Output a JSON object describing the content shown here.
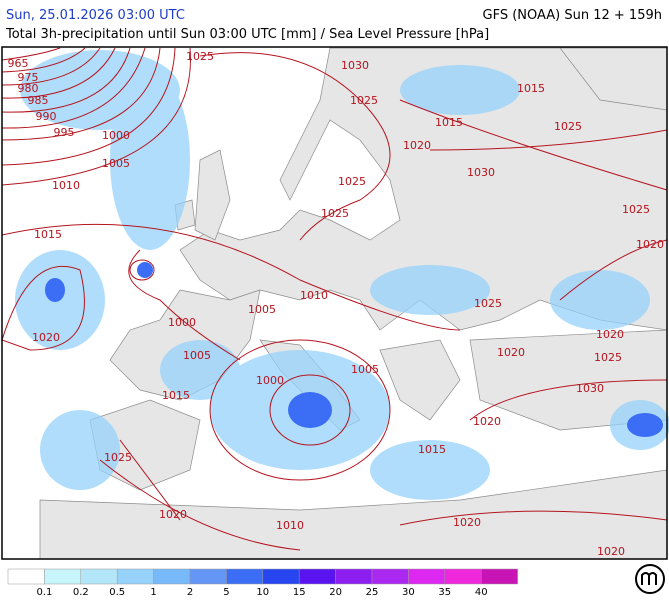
{
  "header": {
    "datetime": "Sun, 25.01.2026 03:00 UTC",
    "model": "GFS (NOAA) Sun 12 + 159h",
    "subtitle": "Total 3h-precipitation until Sun 03:00 UTC [mm] / Sea Level Pressure [hPa]"
  },
  "isobar_labels": [
    "965",
    "975",
    "980",
    "985",
    "990",
    "995",
    "1000",
    "1005",
    "1010",
    "1015",
    "1020",
    "1025",
    "1030",
    "1025",
    "1015",
    "1015",
    "1025",
    "1020",
    "1030",
    "1025",
    "1025",
    "1025",
    "1020",
    "1010",
    "1025",
    "1000",
    "1005",
    "1020",
    "1005",
    "1020",
    "1025",
    "1000",
    "1005",
    "1015",
    "1030",
    "1020",
    "1015",
    "1025",
    "1020",
    "1010",
    "1020",
    "1020"
  ],
  "legend": {
    "colors": [
      "#ffffff",
      "#c8f5fa",
      "#b4e6fa",
      "#96d2fa",
      "#78b9fa",
      "#6496f5",
      "#3c6ef5",
      "#2846f0",
      "#5a14f0",
      "#8c1ef0",
      "#aa28f0",
      "#dc28f0",
      "#f028dc",
      "#c814b4"
    ],
    "labels": [
      "0.1",
      "0.2",
      "0.5",
      "1",
      "2",
      "5",
      "10",
      "15",
      "20",
      "25",
      "30",
      "35",
      "40"
    ]
  }
}
